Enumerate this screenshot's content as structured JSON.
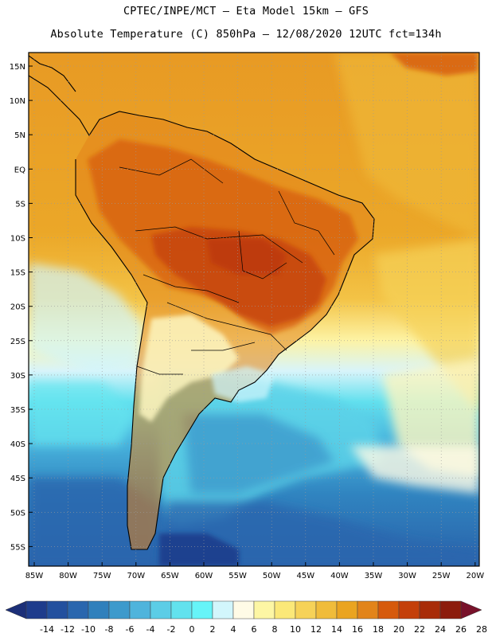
{
  "header": {
    "line1": "CPTEC/INPE/MCT –  Eta Model 15km – GFS",
    "line2": "Absolute Temperature (C) 850hPa – 12/08/2020 12UTC fct=134h"
  },
  "map": {
    "lat_labels": [
      "15N",
      "10N",
      "5N",
      "EQ",
      "5S",
      "10S",
      "15S",
      "20S",
      "25S",
      "30S",
      "35S",
      "40S",
      "45S",
      "50S",
      "55S"
    ],
    "lon_labels": [
      "85W",
      "80W",
      "75W",
      "70W",
      "65W",
      "60W",
      "55W",
      "50W",
      "45W",
      "40W",
      "35W",
      "30W",
      "25W",
      "20W"
    ]
  },
  "colorbar": {
    "ticks": [
      "-14",
      "-12",
      "-10",
      "-8",
      "-6",
      "-4",
      "-2",
      "0",
      "2",
      "4",
      "6",
      "8",
      "10",
      "12",
      "14",
      "16",
      "18",
      "20",
      "22",
      "24",
      "26",
      "28"
    ],
    "colors": [
      "#1e3c8c",
      "#23509e",
      "#2a66ae",
      "#3080bc",
      "#3d9acc",
      "#4fb4dc",
      "#5ccde6",
      "#62e2ee",
      "#66f4f8",
      "#d2f6fc",
      "#fffbe6",
      "#fdf6a4",
      "#fbe878",
      "#f6d258",
      "#f0bc3a",
      "#eaa420",
      "#e2841a",
      "#d65a0c",
      "#c4400a",
      "#a82c08",
      "#8c1c0c"
    ],
    "end_low": "#1c2f78",
    "end_high": "#78122a"
  }
}
